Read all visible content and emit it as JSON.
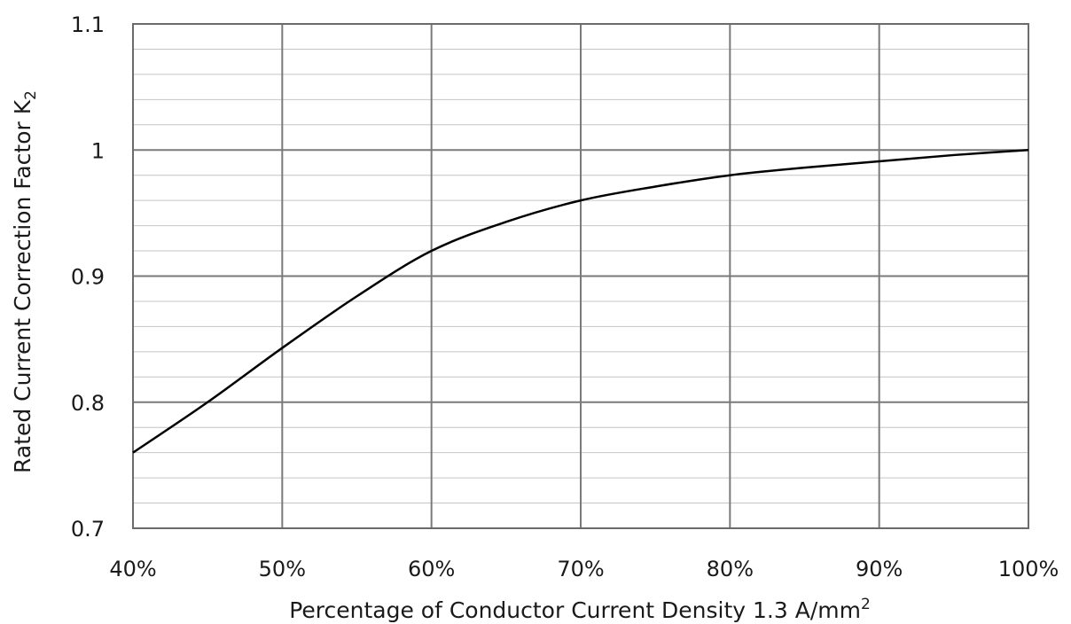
{
  "chart_data": {
    "type": "line",
    "xlabel": "Percentage of Conductor Current Density 1.3 A/mm",
    "xlabel_superscript": "2",
    "ylabel": "Rated Current Correction Factor K",
    "ylabel_subscript": "2",
    "x_ticks": [
      "40%",
      "50%",
      "60%",
      "70%",
      "80%",
      "90%",
      "100%"
    ],
    "y_ticks": [
      "0.7",
      "0.8",
      "0.9",
      "1",
      "1.1"
    ],
    "xlim": [
      40,
      100
    ],
    "ylim": [
      0.7,
      1.1
    ],
    "grid": {
      "major": true,
      "minor_y_step": 0.02
    },
    "series": [
      {
        "color": "#000000",
        "x": [
          40,
          45,
          50,
          55,
          60,
          65,
          70,
          75,
          80,
          85,
          90,
          95,
          100
        ],
        "y": [
          0.76,
          0.8,
          0.843,
          0.884,
          0.92,
          0.943,
          0.96,
          0.971,
          0.98,
          0.986,
          0.991,
          0.996,
          1.0
        ]
      }
    ]
  }
}
